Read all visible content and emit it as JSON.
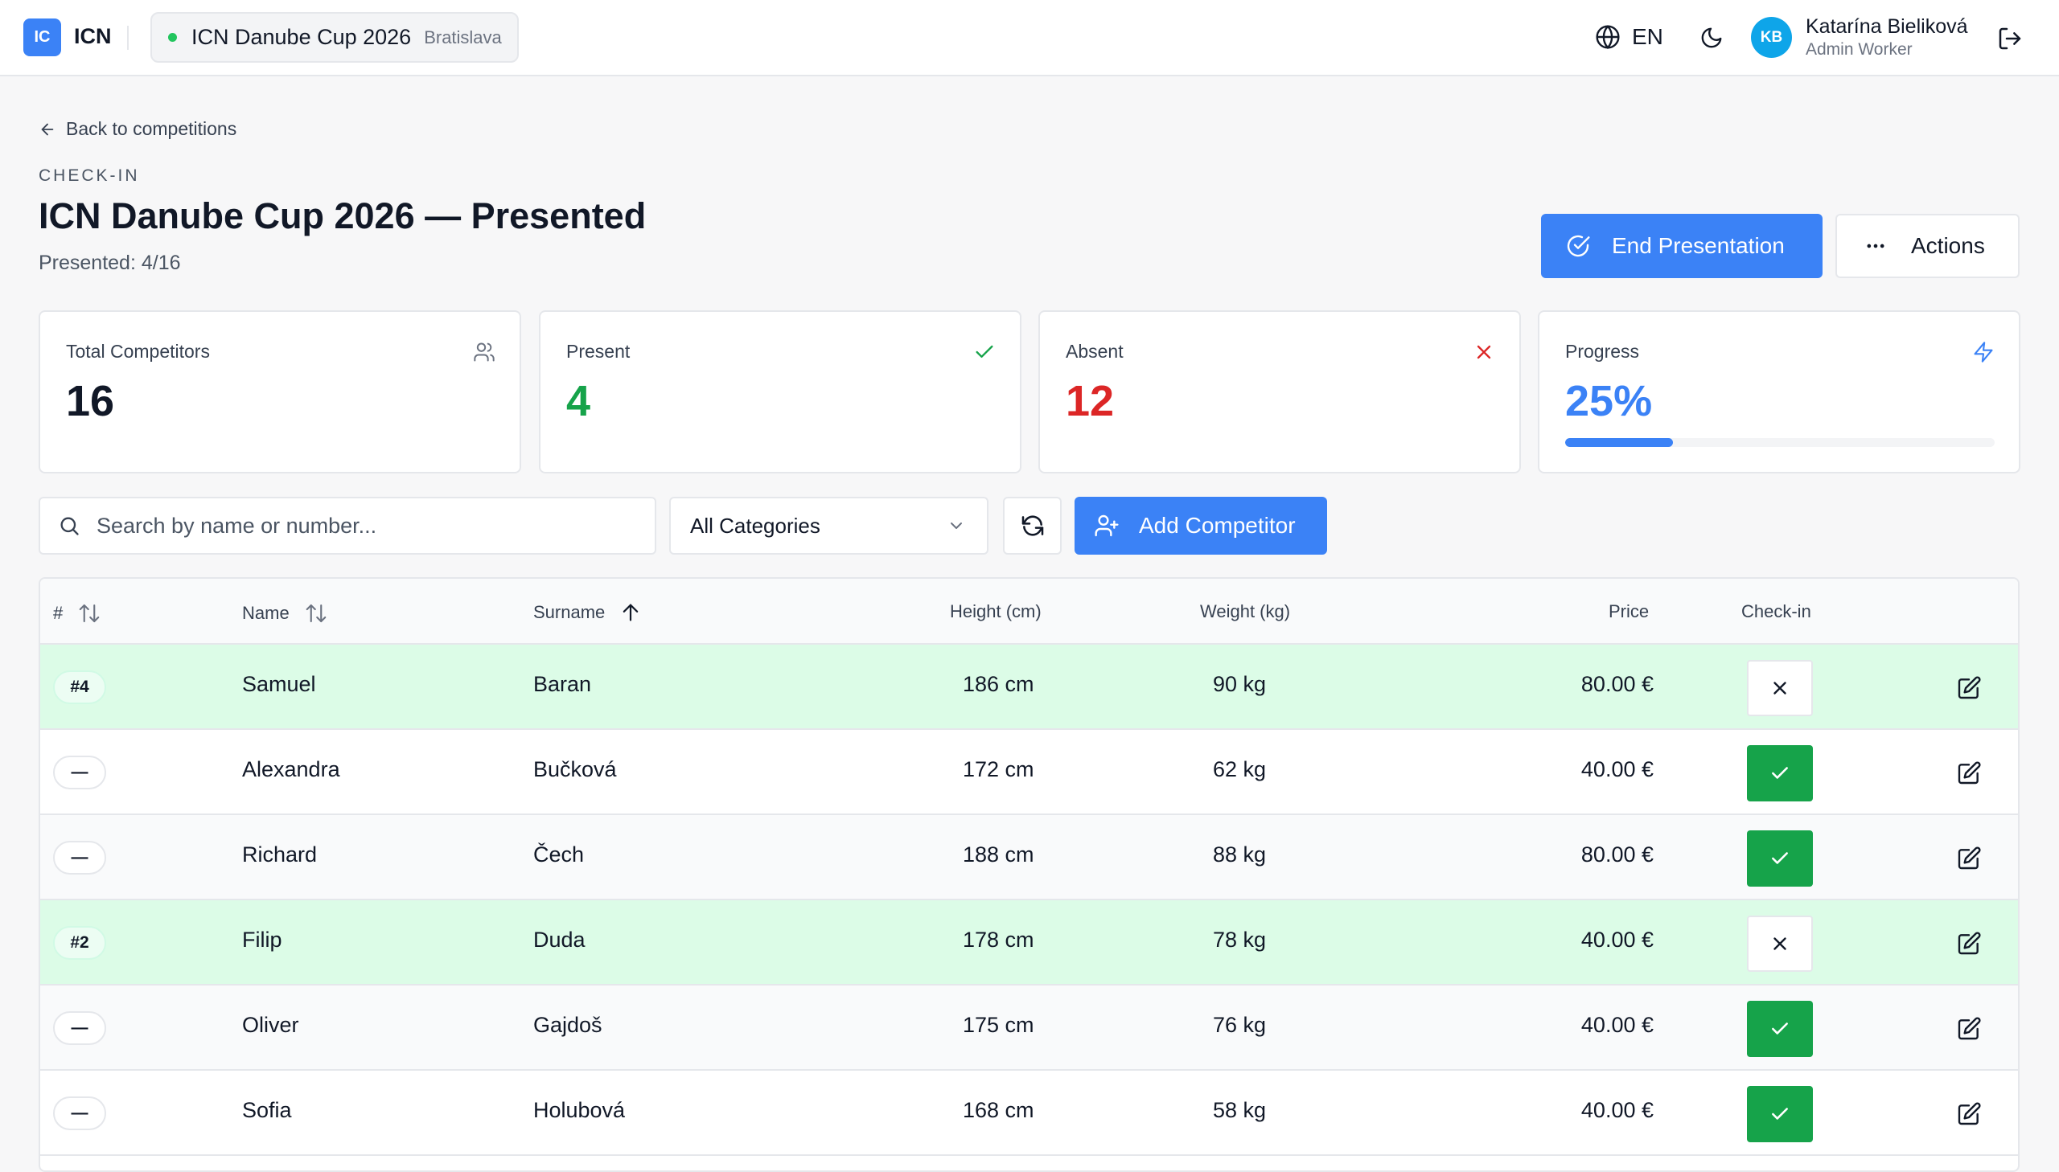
{
  "topbar": {
    "logo_badge": "IC",
    "app_name": "ICN",
    "competition_name": "ICN Danube Cup 2026",
    "competition_city": "Bratislava",
    "status_color": "#22c55e",
    "language": "EN",
    "user_initials": "KB",
    "user_name": "Katarína Bieliková",
    "user_role": "Admin Worker"
  },
  "header": {
    "back_label": "Back to competitions",
    "eyebrow": "CHECK-IN",
    "title": "ICN Danube Cup 2026 — Presented",
    "subtitle": "Presented: 4/16",
    "end_button": "End Presentation",
    "actions_button": "Actions"
  },
  "stats": {
    "total": {
      "label": "Total Competitors",
      "value": "16",
      "icon": "users-icon"
    },
    "present": {
      "label": "Present",
      "value": "4",
      "icon": "check-icon",
      "color": "#16a34a"
    },
    "absent": {
      "label": "Absent",
      "value": "12",
      "icon": "x-icon",
      "color": "#dc2626"
    },
    "progress": {
      "label": "Progress",
      "value": "25%",
      "fraction": 0.25,
      "icon": "bolt-icon",
      "color": "#3b82f6"
    }
  },
  "toolbar": {
    "search_placeholder": "Search by name or number...",
    "category_selected": "All Categories",
    "add_button": "Add Competitor"
  },
  "table": {
    "columns": {
      "num": "#",
      "name": "Name",
      "surname": "Surname",
      "height": "Height (cm)",
      "weight": "Weight (kg)",
      "price": "Price",
      "checkin": "Check-in"
    },
    "rows": [
      {
        "num": "#4",
        "name": "Samuel",
        "surname": "Baran",
        "height": "186 cm",
        "weight": "90 kg",
        "price": "80.00 €",
        "checked_in": false
      },
      {
        "num": "—",
        "name": "Alexandra",
        "surname": "Bučková",
        "height": "172 cm",
        "weight": "62 kg",
        "price": "40.00 €",
        "checked_in": true
      },
      {
        "num": "—",
        "name": "Richard",
        "surname": "Čech",
        "height": "188 cm",
        "weight": "88 kg",
        "price": "80.00 €",
        "checked_in": true
      },
      {
        "num": "#2",
        "name": "Filip",
        "surname": "Duda",
        "height": "178 cm",
        "weight": "78 kg",
        "price": "40.00 €",
        "checked_in": false
      },
      {
        "num": "—",
        "name": "Oliver",
        "surname": "Gajdoš",
        "height": "175 cm",
        "weight": "76 kg",
        "price": "40.00 €",
        "checked_in": true
      },
      {
        "num": "—",
        "name": "Sofia",
        "surname": "Holubová",
        "height": "168 cm",
        "weight": "58 kg",
        "price": "40.00 €",
        "checked_in": true
      }
    ]
  }
}
